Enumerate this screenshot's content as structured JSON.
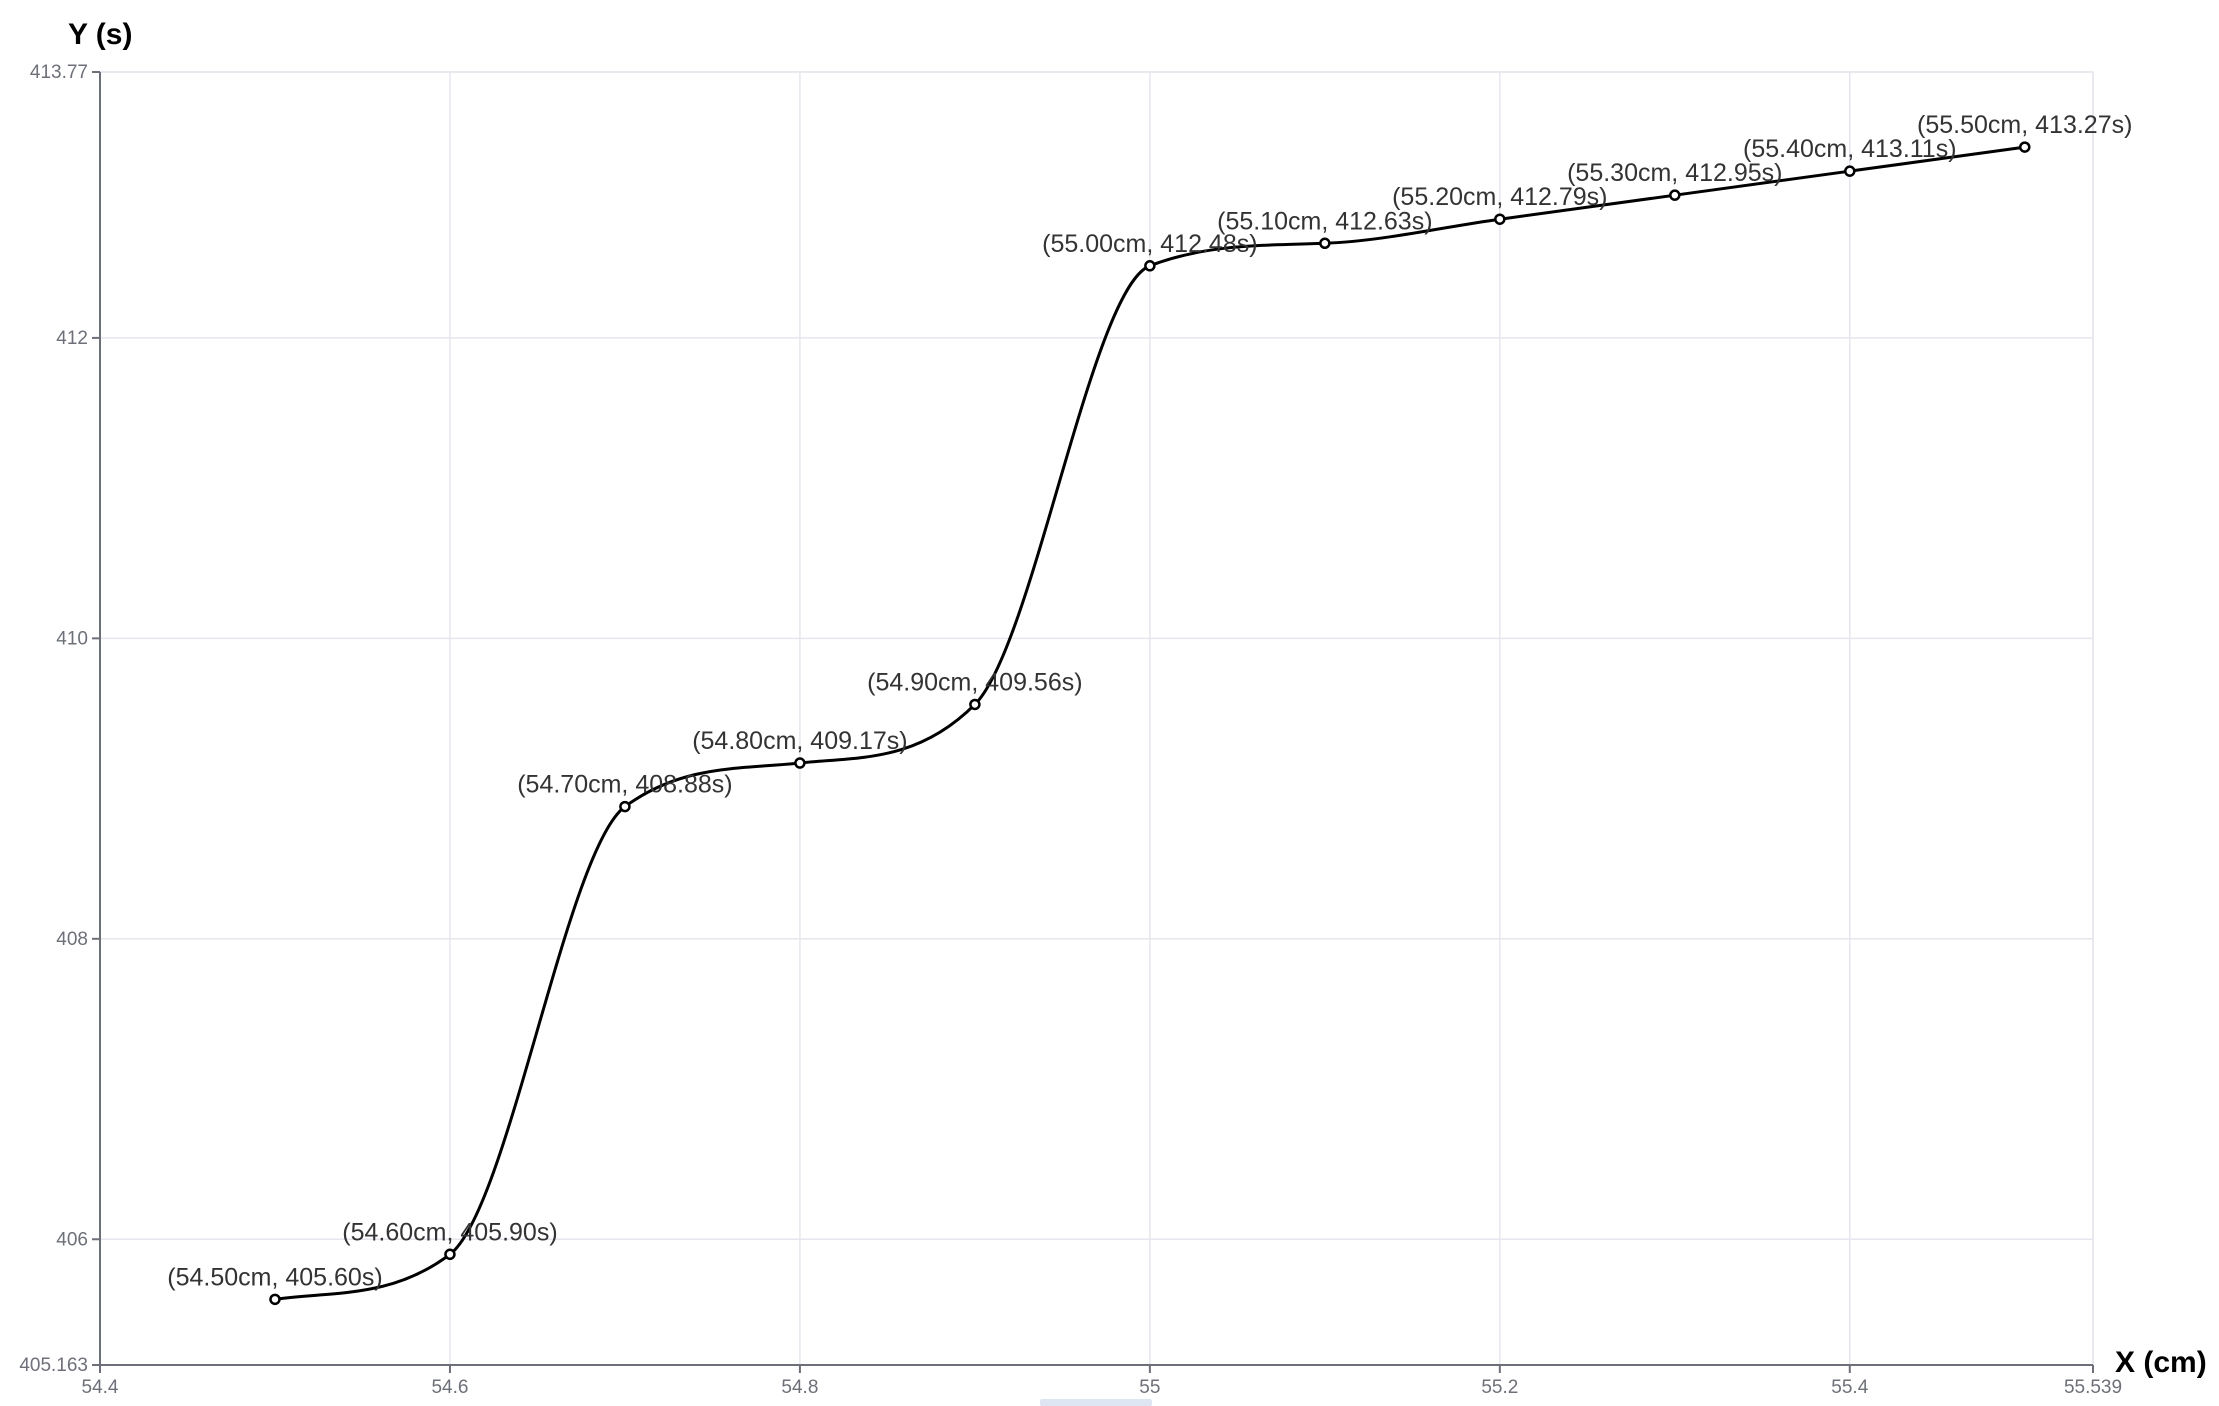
{
  "chart_data": {
    "type": "line",
    "smooth": true,
    "xlabel": "X (cm)",
    "ylabel": "Y (s)",
    "xlim": [
      54.4,
      55.539
    ],
    "ylim": [
      405.163,
      413.77
    ],
    "x_ticks": [
      "54.4",
      "54.6",
      "54.8",
      "55",
      "55.2",
      "55.4",
      "55.539"
    ],
    "x_tick_values": [
      54.4,
      54.6,
      54.8,
      55.0,
      55.2,
      55.4,
      55.539
    ],
    "y_ticks": [
      "405.163",
      "406",
      "408",
      "410",
      "412",
      "413.77"
    ],
    "y_tick_values": [
      405.163,
      406,
      408,
      410,
      412,
      413.77
    ],
    "grid": true,
    "line_color": "#000000",
    "series": [
      {
        "x": [
          54.5,
          54.6,
          54.7,
          54.8,
          54.9,
          55.0,
          55.1,
          55.2,
          55.3,
          55.4,
          55.5
        ],
        "values": [
          405.6,
          405.9,
          408.88,
          409.17,
          409.56,
          412.48,
          412.63,
          412.79,
          412.95,
          413.11,
          413.27
        ],
        "labels": [
          "(54.50cm, 405.60s)",
          "(54.60cm, 405.90s)",
          "(54.70cm, 408.88s)",
          "(54.80cm, 409.17s)",
          "(54.90cm, 409.56s)",
          "(55.00cm, 412.48s)",
          "(55.10cm, 412.63s)",
          "(55.20cm, 412.79s)",
          "(55.30cm, 412.95s)",
          "(55.40cm, 413.11s)",
          "(55.50cm, 413.27s)"
        ]
      }
    ]
  }
}
